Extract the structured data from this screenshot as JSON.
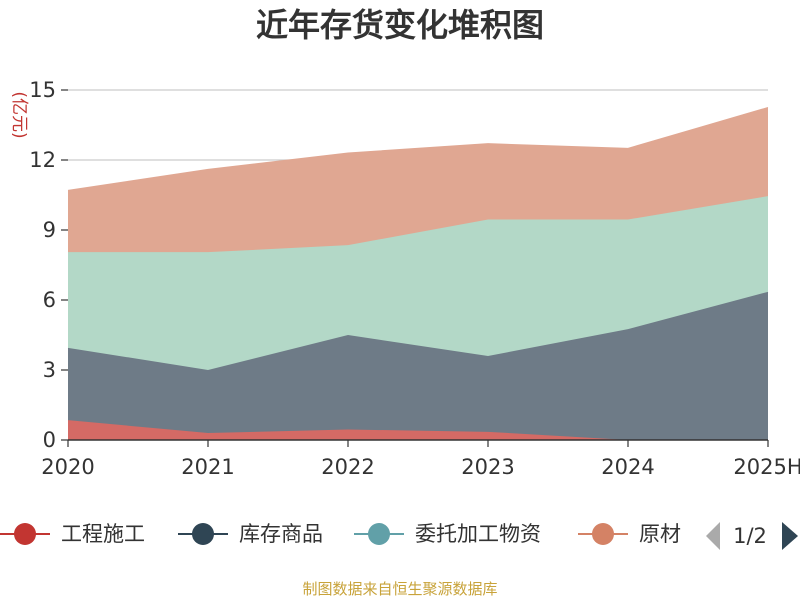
{
  "chart_data": {
    "type": "area",
    "stacked": true,
    "title": "近年存货变化堆积图",
    "ylabel": "(亿元)",
    "categories": [
      "2020",
      "2021",
      "2022",
      "2023",
      "2024",
      "2025H"
    ],
    "ylim": [
      0,
      15
    ],
    "yticks": [
      "0",
      "3",
      "6",
      "9",
      "12",
      "15"
    ],
    "grid": true,
    "series": [
      {
        "name": "工程施工",
        "color": "#d46a65",
        "marker_color": "#c23531",
        "values": [
          0.85,
          0.3,
          0.45,
          0.35,
          0.0,
          0.0
        ]
      },
      {
        "name": "库存商品",
        "color": "#6e7b87",
        "marker_color": "#2f4554",
        "values": [
          3.1,
          2.7,
          4.05,
          3.25,
          4.75,
          6.35
        ]
      },
      {
        "name": "委托加工物资",
        "color": "#b3d8c7",
        "marker_color": "#61a0a8",
        "values": [
          4.1,
          5.05,
          3.85,
          5.85,
          4.7,
          4.1
        ]
      },
      {
        "name": "原材料",
        "color": "#e0a792",
        "marker_color": "#d48265",
        "values": [
          2.65,
          3.55,
          3.95,
          3.25,
          3.05,
          3.8
        ]
      }
    ],
    "legend_placement": "bottom",
    "legend_page": "1/2"
  },
  "legend_display": [
    "工程施工",
    "库存商品",
    "委托加工物资",
    "原材"
  ],
  "footer": "制图数据来自恒生聚源数据库"
}
